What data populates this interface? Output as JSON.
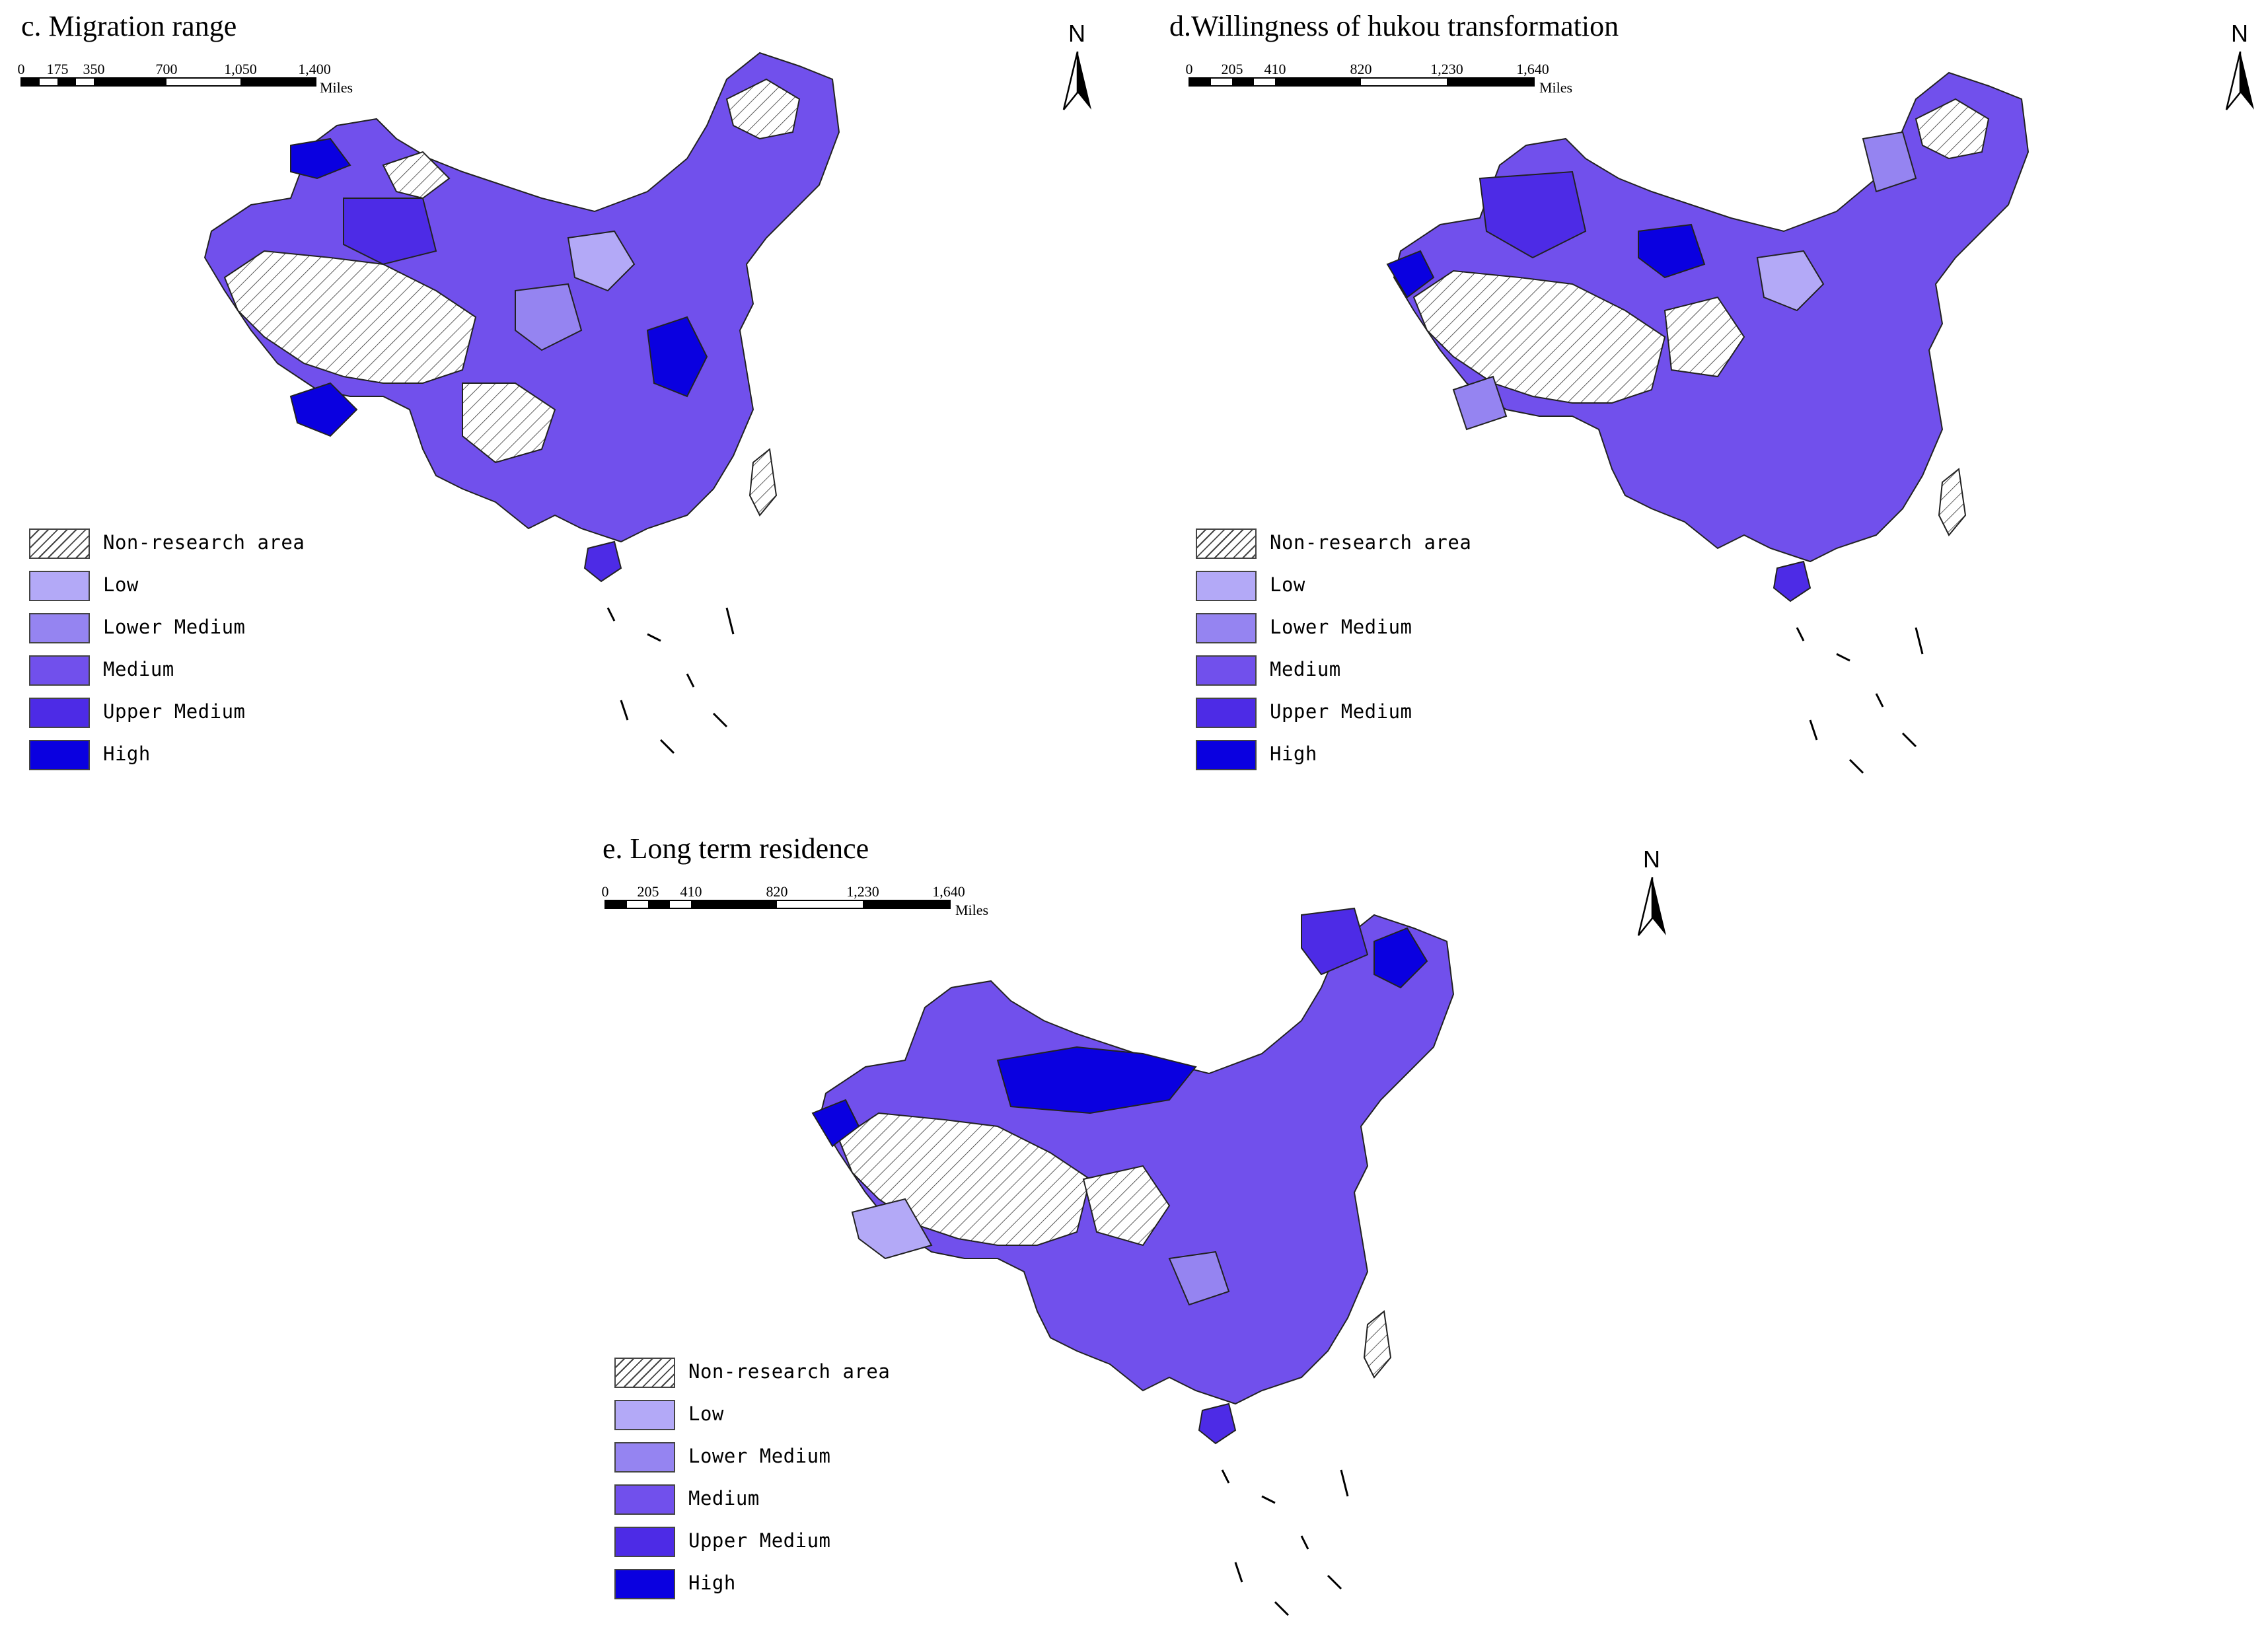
{
  "panels": [
    {
      "id": "c",
      "title": "c. Migration range",
      "scale_ticks": [
        "0",
        "175",
        "350",
        "700",
        "1,050",
        "1,400"
      ],
      "scale_unit": "Miles",
      "north_label": "N",
      "highlight_level": "Upper Medium"
    },
    {
      "id": "d",
      "title": "d.Willingness of hukou  transformation",
      "scale_ticks": [
        "0",
        "205",
        "410",
        "820",
        "1,230",
        "1,640"
      ],
      "scale_unit": "Miles",
      "north_label": "N",
      "highlight_level": "Medium"
    },
    {
      "id": "e",
      "title": "e. Long term residence",
      "scale_ticks": [
        "0",
        "205",
        "410",
        "820",
        "1,230",
        "1,640"
      ],
      "scale_unit": "Miles",
      "north_label": "N",
      "highlight_level": "Upper Medium"
    }
  ],
  "legend": [
    {
      "label": "Non-research area",
      "color": "hatch"
    },
    {
      "label": "Low",
      "color": "#b3a9f7"
    },
    {
      "label": "Lower Medium",
      "color": "#9584f1"
    },
    {
      "label": "Medium",
      "color": "#7150ec"
    },
    {
      "label": "Upper Medium",
      "color": "#4d2be6"
    },
    {
      "label": "High",
      "color": "#0a00e0"
    }
  ]
}
